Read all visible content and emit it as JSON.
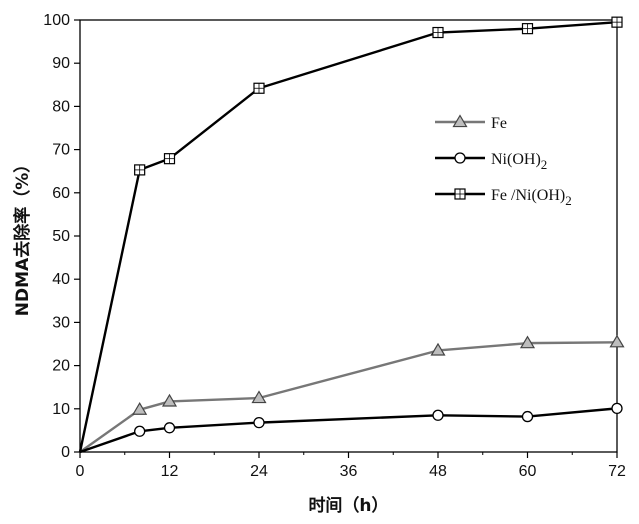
{
  "chart_data": {
    "type": "line",
    "xlabel": "时间（h）",
    "ylabel": "NDMA去除率（%）",
    "xlim": [
      0,
      72
    ],
    "ylim": [
      0,
      100
    ],
    "xticks": [
      0,
      12,
      24,
      36,
      48,
      60,
      72
    ],
    "yticks": [
      0,
      10,
      20,
      30,
      40,
      50,
      60,
      70,
      80,
      90,
      100
    ],
    "grid": false,
    "legend_position": "center-right",
    "series": [
      {
        "name": "Fe",
        "marker": "triangle",
        "color": "#777777",
        "x": [
          0,
          8,
          12,
          24,
          48,
          60,
          72
        ],
        "y": [
          0,
          9.8,
          11.7,
          12.5,
          23.5,
          25.2,
          25.4
        ]
      },
      {
        "name": "Ni(OH)2",
        "marker": "circle",
        "color": "#000000",
        "x": [
          0,
          8,
          12,
          24,
          48,
          60,
          72
        ],
        "y": [
          0,
          4.8,
          5.6,
          6.8,
          8.5,
          8.2,
          10.1
        ]
      },
      {
        "name": "Fe /Ni(OH)2",
        "marker": "square",
        "color": "#000000",
        "x": [
          0,
          8,
          12,
          24,
          48,
          60,
          72
        ],
        "y": [
          0,
          65.3,
          67.9,
          84.2,
          97.1,
          98.0,
          99.5
        ]
      }
    ]
  }
}
